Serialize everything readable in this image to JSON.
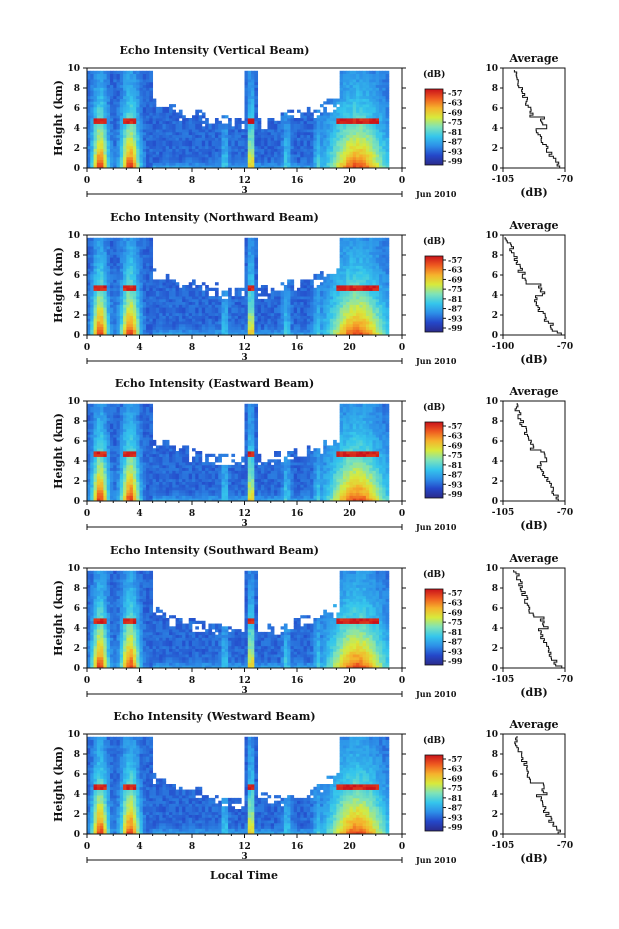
{
  "figure": {
    "xlabel": "Local Time",
    "month_label": "Jun 2010",
    "day_label": "3",
    "colorbar_unit": "(dB)",
    "colorbar_ticks": [
      "-57",
      "-63",
      "-69",
      "-75",
      "-81",
      "-87",
      "-93",
      "-99"
    ],
    "avg_title": "Average",
    "avg_xlabel": "(dB)"
  },
  "chart_data": [
    {
      "type": "heatmap",
      "title": "Echo Intensity (Vertical Beam)",
      "ylabel": "Height (km)",
      "x": [
        0,
        4,
        8,
        12,
        16,
        20,
        0
      ],
      "ylim": [
        0,
        10
      ],
      "yticks": [
        0,
        2,
        4,
        6,
        8,
        10
      ],
      "colorbar_range": [
        -99,
        -57
      ],
      "average": {
        "xlim": [
          -105,
          -70
        ],
        "xtick_labels": [
          "-105",
          "-70"
        ]
      }
    },
    {
      "type": "heatmap",
      "title": "Echo Intensity (Northward Beam)",
      "ylabel": "Height (km)",
      "x": [
        0,
        4,
        8,
        12,
        16,
        20,
        0
      ],
      "ylim": [
        0,
        10
      ],
      "yticks": [
        0,
        2,
        4,
        6,
        8,
        10
      ],
      "colorbar_range": [
        -99,
        -57
      ],
      "average": {
        "xlim": [
          -100,
          -70
        ],
        "xtick_labels": [
          "-100",
          "-70"
        ]
      }
    },
    {
      "type": "heatmap",
      "title": "Echo Intensity (Eastward Beam)",
      "ylabel": "Height (km)",
      "x": [
        0,
        4,
        8,
        12,
        16,
        20,
        0
      ],
      "ylim": [
        0,
        10
      ],
      "yticks": [
        0,
        2,
        4,
        6,
        8,
        10
      ],
      "colorbar_range": [
        -99,
        -57
      ],
      "average": {
        "xlim": [
          -105,
          -70
        ],
        "xtick_labels": [
          "-105",
          "-70"
        ]
      }
    },
    {
      "type": "heatmap",
      "title": "Echo Intensity (Southward Beam)",
      "ylabel": "Height (km)",
      "x": [
        0,
        4,
        8,
        12,
        16,
        20,
        0
      ],
      "ylim": [
        0,
        10
      ],
      "yticks": [
        0,
        2,
        4,
        6,
        8,
        10
      ],
      "colorbar_range": [
        -99,
        -57
      ],
      "average": {
        "xlim": [
          -105,
          -70
        ],
        "xtick_labels": [
          "-105",
          "-70"
        ]
      }
    },
    {
      "type": "heatmap",
      "title": "Echo Intensity (Westward Beam)",
      "ylabel": "Height (km)",
      "x": [
        0,
        4,
        8,
        12,
        16,
        20,
        0
      ],
      "ylim": [
        0,
        10
      ],
      "yticks": [
        0,
        2,
        4,
        6,
        8,
        10
      ],
      "colorbar_range": [
        -99,
        -57
      ],
      "average": {
        "xlim": [
          -105,
          -70
        ],
        "xtick_labels": [
          "-105",
          "-70"
        ]
      }
    }
  ],
  "colors": {
    "axis": "#111111",
    "colormap": [
      "#2b2a8a",
      "#2447c9",
      "#2d8fe8",
      "#35c6ec",
      "#7fe3b8",
      "#d8ea3c",
      "#f5b22c",
      "#ef5b20",
      "#c9121a"
    ]
  }
}
